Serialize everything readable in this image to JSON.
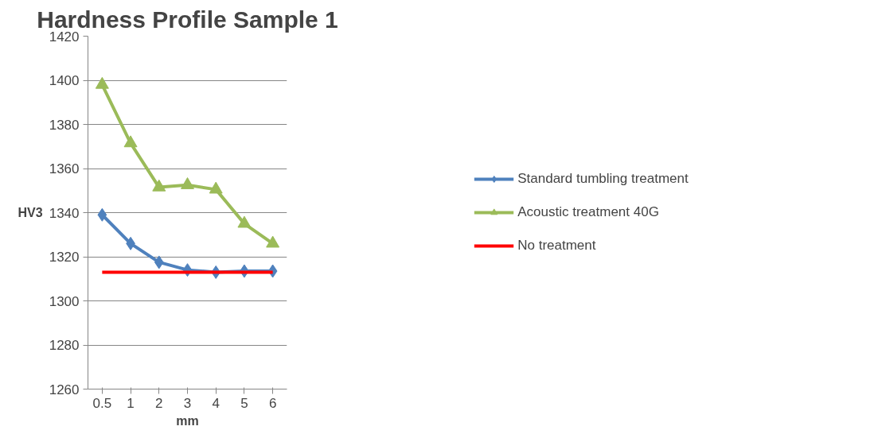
{
  "chart_data": {
    "type": "line",
    "title": "Hardness Profile Sample 1",
    "xlabel": "mm",
    "ylabel": "HV3",
    "categories": [
      "0.5",
      "1",
      "2",
      "3",
      "4",
      "5",
      "6"
    ],
    "series": [
      {
        "name": "Standard tumbling treatment",
        "color": "#4f81bd",
        "marker": "diamond",
        "values": [
          1339,
          1326,
          1317.5,
          1314,
          1313,
          1313.5,
          1313.5
        ]
      },
      {
        "name": "Acoustic treatment 40G",
        "color": "#9bbb59",
        "marker": "triangle",
        "values": [
          1398,
          1371.5,
          1351.5,
          1352.5,
          1350.5,
          1335,
          1326
        ]
      },
      {
        "name": "No treatment",
        "color": "#ff0000",
        "marker": "none",
        "values": [
          1313,
          1313,
          1313,
          1313,
          1313,
          1313,
          1313
        ]
      }
    ],
    "ylim": [
      1260,
      1420
    ],
    "yticks": [
      1260,
      1280,
      1300,
      1320,
      1340,
      1360,
      1380,
      1400,
      1420
    ],
    "grid": "y",
    "legend": "right"
  }
}
